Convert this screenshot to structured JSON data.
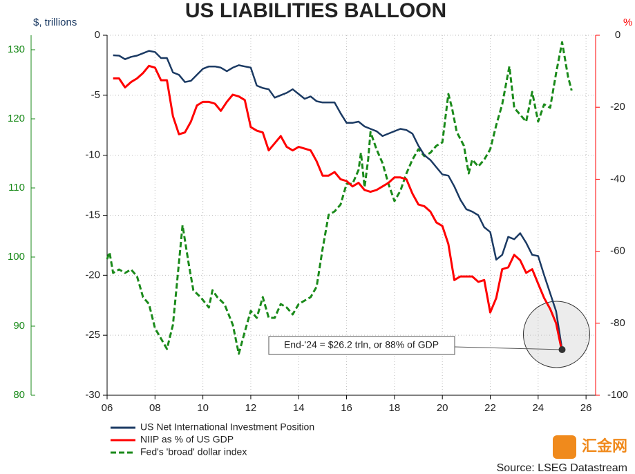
{
  "chart_data": {
    "type": "line",
    "title": "US LIABILITIES BALLOON",
    "y_label": "$, trillions",
    "y2_label": "%",
    "annotation": "End-'24 = $26.2 trln, or 88% of GDP",
    "source": "Source: LSEG Datastream",
    "watermark": "汇金网",
    "grid": true,
    "xlim": [
      2006,
      2026.4
    ],
    "xticks": [
      {
        "value": 2006,
        "label": "06"
      },
      {
        "value": 2008,
        "label": "08"
      },
      {
        "value": 2010,
        "label": "10"
      },
      {
        "value": 2012,
        "label": "12"
      },
      {
        "value": 2014,
        "label": "14"
      },
      {
        "value": 2016,
        "label": "16"
      },
      {
        "value": 2018,
        "label": "18"
      },
      {
        "value": 2020,
        "label": "20"
      },
      {
        "value": 2022,
        "label": "22"
      },
      {
        "value": 2024,
        "label": "24"
      },
      {
        "value": 2026,
        "label": "26"
      }
    ],
    "ylim": [
      -30,
      0
    ],
    "yticks": [
      0,
      -5,
      -10,
      -15,
      -20,
      -25,
      -30
    ],
    "y2lim": [
      -100,
      0
    ],
    "y2ticks": [
      0,
      -20,
      -40,
      -60,
      -80,
      -100
    ],
    "y3lim": [
      80,
      132.1
    ],
    "y3ticks": [
      80,
      90,
      100,
      110,
      120,
      130
    ],
    "series": [
      {
        "name": "US Net International Investment Position",
        "color": "#1b3a63",
        "axis": "y",
        "x": [
          2006.25,
          2006.5,
          2006.75,
          2007,
          2007.25,
          2007.5,
          2007.75,
          2008,
          2008.25,
          2008.5,
          2008.75,
          2009,
          2009.25,
          2009.5,
          2009.75,
          2010,
          2010.25,
          2010.5,
          2010.75,
          2011,
          2011.25,
          2011.5,
          2011.75,
          2012,
          2012.25,
          2012.5,
          2012.75,
          2013,
          2013.25,
          2013.5,
          2013.75,
          2014,
          2014.25,
          2014.5,
          2014.75,
          2015,
          2015.25,
          2015.5,
          2015.75,
          2016,
          2016.25,
          2016.5,
          2016.75,
          2017,
          2017.25,
          2017.5,
          2017.75,
          2018,
          2018.25,
          2018.5,
          2018.75,
          2019,
          2019.25,
          2019.5,
          2019.75,
          2020,
          2020.25,
          2020.5,
          2020.75,
          2021,
          2021.25,
          2021.5,
          2021.75,
          2022,
          2022.25,
          2022.5,
          2022.75,
          2023,
          2023.25,
          2023.5,
          2023.75,
          2024,
          2024.25,
          2024.5,
          2024.75,
          2025
        ],
        "values": [
          -1.67,
          -1.7,
          -2.0,
          -1.8,
          -1.7,
          -1.5,
          -1.3,
          -1.4,
          -1.9,
          -1.9,
          -3.1,
          -3.3,
          -3.9,
          -3.8,
          -3.3,
          -2.8,
          -2.6,
          -2.6,
          -2.7,
          -3.0,
          -2.7,
          -2.5,
          -2.6,
          -2.7,
          -4.2,
          -4.4,
          -4.5,
          -5.2,
          -5.0,
          -4.8,
          -4.5,
          -4.9,
          -5.3,
          -5.1,
          -5.5,
          -5.6,
          -5.6,
          -5.6,
          -6.5,
          -7.3,
          -7.3,
          -7.2,
          -7.6,
          -7.8,
          -8.0,
          -8.4,
          -8.2,
          -8.0,
          -7.8,
          -7.9,
          -8.2,
          -9.2,
          -10.0,
          -10.4,
          -11.0,
          -11.6,
          -11.7,
          -12.6,
          -13.7,
          -14.5,
          -14.7,
          -15.0,
          -16.0,
          -16.4,
          -18.7,
          -18.3,
          -16.8,
          -17.0,
          -16.5,
          -17.3,
          -18.3,
          -18.4,
          -20.0,
          -21.5,
          -23.0,
          -26.2
        ]
      },
      {
        "name": "NIIP as % of US GDP",
        "color": "#ff0000",
        "axis": "y2",
        "x": [
          2006.25,
          2006.5,
          2006.75,
          2007,
          2007.25,
          2007.5,
          2007.75,
          2008,
          2008.25,
          2008.5,
          2008.75,
          2009,
          2009.25,
          2009.5,
          2009.75,
          2010,
          2010.25,
          2010.5,
          2010.75,
          2011,
          2011.25,
          2011.5,
          2011.75,
          2012,
          2012.25,
          2012.5,
          2012.75,
          2013,
          2013.25,
          2013.5,
          2013.75,
          2014,
          2014.25,
          2014.5,
          2014.75,
          2015,
          2015.25,
          2015.5,
          2015.75,
          2016,
          2016.25,
          2016.5,
          2016.75,
          2017,
          2017.25,
          2017.5,
          2017.75,
          2018,
          2018.25,
          2018.5,
          2018.75,
          2019,
          2019.25,
          2019.5,
          2019.75,
          2020,
          2020.25,
          2020.5,
          2020.75,
          2021,
          2021.25,
          2021.5,
          2021.75,
          2022,
          2022.25,
          2022.5,
          2022.75,
          2023,
          2023.25,
          2023.5,
          2023.75,
          2024,
          2024.25,
          2024.5,
          2024.75,
          2025
        ],
        "values": [
          -12,
          -12,
          -14.5,
          -13,
          -12,
          -10.5,
          -8.5,
          -9,
          -12.5,
          -12.5,
          -22.5,
          -27.5,
          -27,
          -24,
          -19.5,
          -18.5,
          -18.5,
          -19,
          -21,
          -18.5,
          -16.5,
          -17,
          -18,
          -25.5,
          -26.5,
          -27,
          -32,
          -30,
          -28,
          -31,
          -32,
          -31,
          -31.5,
          -32,
          -35,
          -39,
          -39,
          -38,
          -40,
          -40.5,
          -42,
          -41,
          -43,
          -43.5,
          -43,
          -42,
          -41,
          -39.5,
          -39.5,
          -40,
          -44,
          -47,
          -47.5,
          -49,
          -52,
          -53,
          -58,
          -68,
          -67,
          -67,
          -67,
          -68.5,
          -68,
          -77,
          -73,
          -65,
          -64.5,
          -61,
          -62.5,
          -66,
          -65,
          -69,
          -73,
          -76,
          -80,
          -88
        ]
      },
      {
        "name": "Fed's 'broad' dollar index",
        "color": "#1a8a1a",
        "axis": "y3",
        "x": [
          2006.0,
          2006.1,
          2006.25,
          2006.5,
          2006.75,
          2007.0,
          2007.25,
          2007.5,
          2007.75,
          2008.0,
          2008.25,
          2008.5,
          2008.75,
          2009.0,
          2009.15,
          2009.4,
          2009.6,
          2009.9,
          2010.25,
          2010.4,
          2010.6,
          2010.9,
          2011.25,
          2011.5,
          2011.75,
          2012.0,
          2012.25,
          2012.5,
          2012.75,
          2013.0,
          2013.25,
          2013.5,
          2013.75,
          2014.0,
          2014.25,
          2014.5,
          2014.75,
          2015.0,
          2015.25,
          2015.5,
          2015.75,
          2016.0,
          2016.25,
          2016.5,
          2016.6,
          2016.75,
          2016.9,
          2017.0,
          2017.25,
          2017.5,
          2017.75,
          2018.0,
          2018.25,
          2018.5,
          2018.75,
          2019.0,
          2019.25,
          2019.5,
          2019.75,
          2020.0,
          2020.25,
          2020.4,
          2020.6,
          2020.9,
          2021.1,
          2021.25,
          2021.5,
          2021.75,
          2022.0,
          2022.25,
          2022.5,
          2022.8,
          2023.0,
          2023.25,
          2023.5,
          2023.75,
          2024.0,
          2024.25,
          2024.5,
          2024.75,
          2025.0,
          2025.25,
          2025.4
        ],
        "values": [
          99.7,
          100.7,
          97.7,
          98.2,
          97.7,
          98.2,
          97.2,
          94.2,
          93.2,
          89.7,
          88.2,
          86.7,
          90.2,
          99.2,
          104.6,
          99.2,
          95.2,
          94.2,
          92.7,
          95.2,
          94.2,
          93.2,
          90.2,
          86.0,
          89.2,
          92.2,
          91.2,
          94.2,
          91.2,
          91.2,
          93.2,
          92.7,
          91.7,
          93.2,
          93.7,
          94.2,
          95.7,
          101.2,
          106.1,
          106.6,
          107.6,
          110.6,
          110.6,
          112.6,
          115.1,
          110.1,
          114.1,
          118.1,
          115.6,
          113.6,
          110.6,
          108.1,
          109.6,
          112.1,
          114.1,
          115.6,
          114.6,
          115.1,
          116.1,
          116.6,
          123.6,
          121.6,
          118.1,
          116.1,
          112.1,
          114.1,
          113.1,
          114.1,
          115.6,
          119.1,
          122.1,
          127.6,
          121.6,
          120.6,
          119.6,
          123.9,
          119.6,
          122.1,
          121.6,
          126.6,
          131.1,
          126.1,
          124.1
        ]
      }
    ]
  }
}
